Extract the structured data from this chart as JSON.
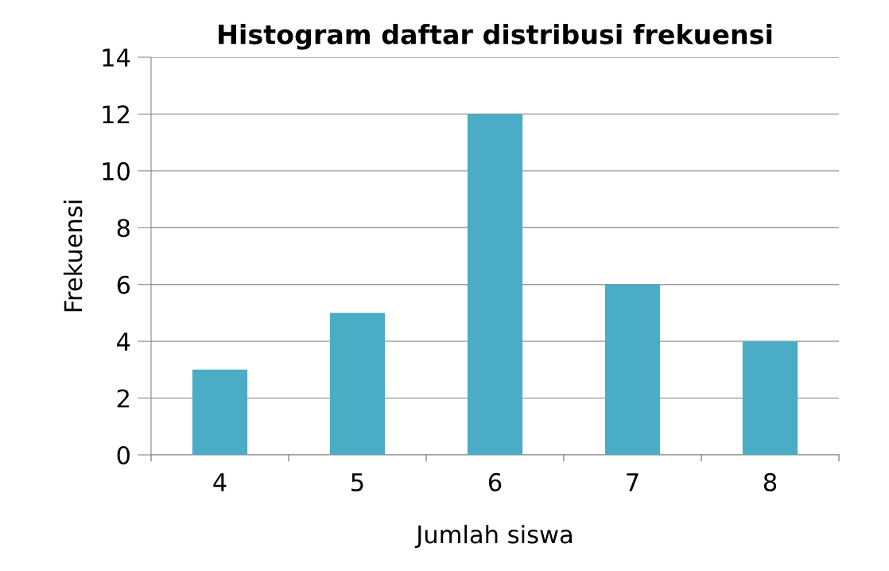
{
  "chart_data": {
    "type": "bar",
    "title": "Histogram daftar distribusi frekuensi",
    "xlabel": "Jumlah siswa",
    "ylabel": "Frekuensi",
    "categories": [
      "4",
      "5",
      "6",
      "7",
      "8"
    ],
    "series": [
      {
        "color": "#4bacc6",
        "values": [
          3,
          5,
          12,
          6,
          4
        ]
      }
    ],
    "ylim": [
      0,
      14
    ],
    "yticks": [
      0,
      2,
      4,
      6,
      8,
      10,
      12,
      14
    ],
    "grid": "y",
    "legend": false
  }
}
